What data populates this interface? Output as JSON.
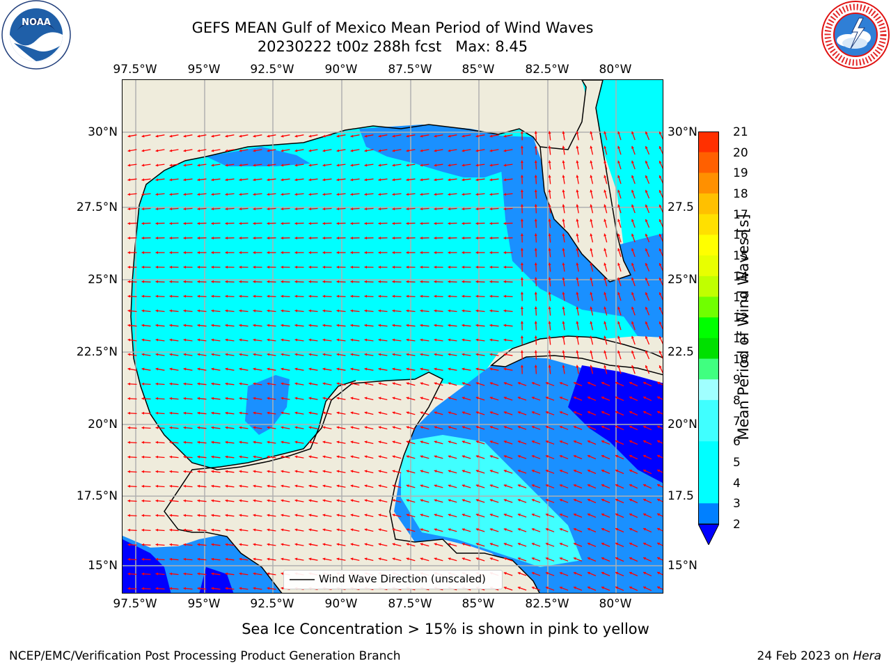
{
  "header": {
    "title_line1": "GEFS MEAN Gulf of Mexico Mean Period of Wind Waves",
    "title_line2": "20230222 t00z 288h fcst   Max: 8.45"
  },
  "logos": {
    "left": {
      "name": "NOAA",
      "ring_text": "NATIONAL OCEANIC AND ATMOSPHERIC ADMINISTRATION · U.S. DEPARTMENT OF COMMERCE"
    },
    "right": {
      "name": "NATIONAL WEATHER SERVICE"
    }
  },
  "axes": {
    "lon_ticks": [
      "97.5°W",
      "95°W",
      "92.5°W",
      "90°W",
      "87.5°W",
      "85°W",
      "82.5°W",
      "80°W"
    ],
    "lat_ticks_left": [
      "30°N",
      "27.5°N",
      "25°N",
      "22.5°N",
      "20°N",
      "17.5°N",
      "15°N"
    ],
    "lat_ticks_right": [
      "30°N",
      "27.5",
      "25°N",
      "22.5",
      "20°N",
      "17.5",
      "15°N"
    ]
  },
  "colorbar": {
    "label": "Mean Period of Wind Waves [s]",
    "ticks": [
      "21",
      "20",
      "19",
      "18",
      "17",
      "16",
      "15",
      "14",
      "13",
      "12",
      "11",
      "10",
      "9",
      "8",
      "7",
      "6",
      "5",
      "4",
      "3",
      "2"
    ],
    "colors": {
      "2": "#0080ff",
      "4": "#00ffff",
      "5": "#00ffff",
      "6": "#40ffff",
      "7": "#40ffff",
      "8": "#a0ffff",
      "9": "#40ff80",
      "10": "#00e000",
      "11": "#00ff00",
      "12": "#70ff00",
      "13": "#c0ff00",
      "14": "#e8ff00",
      "15": "#ffff00",
      "16": "#ffe000",
      "17": "#ffc000",
      "18": "#ff9000",
      "19": "#ff6000",
      "20": "#ff3000",
      "21": "#ff0000",
      "under": "#0000ff"
    }
  },
  "legend": {
    "label": "Wind Wave Direction (unscaled)"
  },
  "map": {
    "land_color": "#efecdc",
    "arrow_color": "#ff0000",
    "grid_color": "#b0b0b0"
  },
  "footer": {
    "note": "Sea Ice Concentration > 15% is shown in pink to yellow",
    "left": "NCEP/EMC/Verification Post Processing Product Generation Branch",
    "right_prefix": "24 Feb 2023 on ",
    "right_host": "Hera"
  }
}
